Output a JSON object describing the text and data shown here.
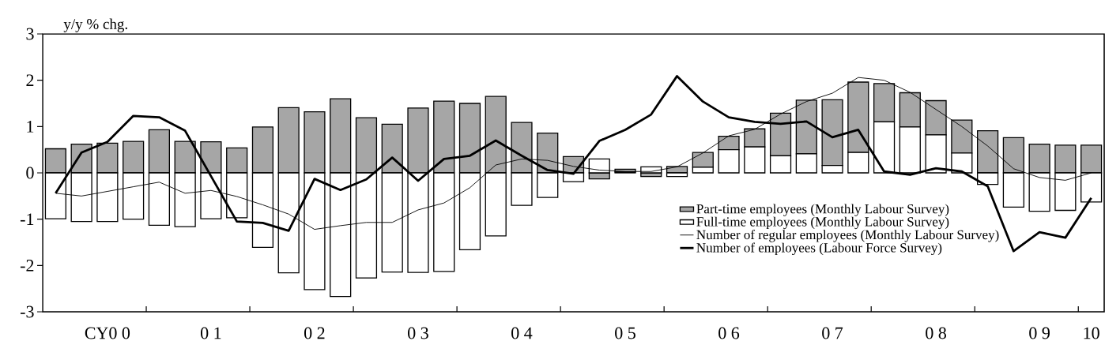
{
  "chart_data": {
    "type": "bar",
    "stacked": true,
    "ylabel": "y/y % chg.",
    "categories": [
      null,
      null,
      "CY0 0",
      null,
      null,
      null,
      "0 1",
      null,
      null,
      null,
      "0 2",
      null,
      null,
      null,
      "0 3",
      null,
      null,
      null,
      "0 4",
      null,
      null,
      null,
      "0 5",
      null,
      null,
      null,
      "0 6",
      null,
      null,
      null,
      "0 7",
      null,
      null,
      null,
      "0 8",
      null,
      null,
      null,
      "0 9",
      null,
      "10"
    ],
    "ylim": [
      -3,
      3
    ],
    "yticks": [
      -3,
      -2,
      -1,
      0,
      1,
      2,
      3
    ],
    "grid": false,
    "legend": "bottom right",
    "marker": "none",
    "series": [
      {
        "name": "Full-time employees (Monthly Labour Survey)",
        "color": "#ffffff",
        "values": [
          -0.99,
          -1.05,
          -1.05,
          -1.0,
          -1.13,
          -1.16,
          -0.99,
          -0.97,
          -1.61,
          -2.16,
          -2.52,
          -2.67,
          -2.27,
          -2.14,
          -2.15,
          -2.13,
          -1.66,
          -1.36,
          -0.7,
          -0.53,
          -0.19,
          0.3,
          0.02,
          0.13,
          -0.08,
          0.12,
          0.5,
          0.56,
          0.37,
          0.41,
          0.16,
          0.44,
          1.1,
          0.99,
          0.82,
          0.43,
          -0.25,
          -0.74,
          -0.83,
          -0.81,
          -0.63
        ]
      },
      {
        "name": "Part-time employees (Monthly Labour Survey)",
        "color": "#a6a6a6",
        "values": [
          0.52,
          0.62,
          0.64,
          0.68,
          0.93,
          0.68,
          0.67,
          0.54,
          0.99,
          1.41,
          1.32,
          1.6,
          1.19,
          1.05,
          1.4,
          1.55,
          1.5,
          1.65,
          1.09,
          0.86,
          0.35,
          -0.13,
          0.06,
          -0.08,
          0.14,
          0.32,
          0.29,
          0.39,
          0.92,
          1.16,
          1.42,
          1.52,
          0.83,
          0.74,
          0.74,
          0.71,
          0.91,
          0.76,
          0.62,
          0.6,
          0.6
        ]
      },
      {
        "name": "Number of regular employees (Monthly Labour Survey)",
        "type": "line",
        "color": "#000000",
        "values": [
          -0.44,
          -0.5,
          -0.4,
          -0.3,
          -0.2,
          -0.44,
          -0.38,
          -0.51,
          -0.69,
          -0.89,
          -1.22,
          -1.14,
          -1.07,
          -1.07,
          -0.8,
          -0.65,
          -0.32,
          0.17,
          0.3,
          0.27,
          0.14,
          0.06,
          0.03,
          0.03,
          0.13,
          0.43,
          0.8,
          0.94,
          1.27,
          1.54,
          1.72,
          2.06,
          2.0,
          1.74,
          1.37,
          1.0,
          0.58,
          0.09,
          -0.1,
          -0.16,
          0.0
        ]
      },
      {
        "name": "Number of employees (Labour Force Survey)",
        "type": "line",
        "color": "#000000",
        "values": [
          -0.44,
          0.44,
          0.67,
          1.23,
          1.2,
          0.91,
          -0.07,
          -1.05,
          -1.08,
          -1.25,
          -0.13,
          -0.37,
          -0.14,
          0.33,
          -0.17,
          0.3,
          0.37,
          0.7,
          0.37,
          0.06,
          -0.02,
          0.69,
          0.93,
          1.26,
          2.09,
          1.54,
          1.2,
          1.1,
          1.06,
          1.11,
          0.77,
          0.93,
          0.03,
          -0.04,
          0.1,
          0.03,
          -0.29,
          -1.69,
          -1.28,
          -1.4,
          -0.54
        ]
      }
    ]
  }
}
